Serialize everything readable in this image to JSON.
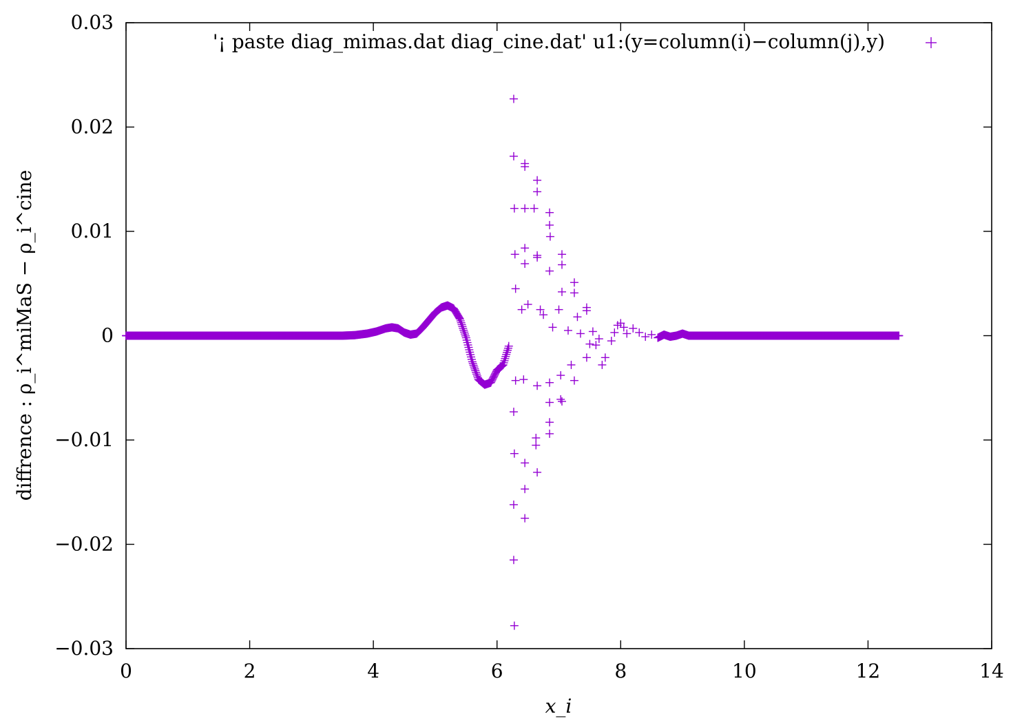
{
  "chart_data": {
    "type": "scatter",
    "xlabel": "x_i",
    "ylabel": "diffrence : ρ_i^miMaS − ρ_i^cine",
    "xlim": [
      0,
      14
    ],
    "ylim": [
      -0.03,
      0.03
    ],
    "x_ticks": [
      "0",
      "2",
      "4",
      "6",
      "8",
      "10",
      "12",
      "14"
    ],
    "y_ticks": [
      "−0.03",
      "−0.02",
      "−0.01",
      "0",
      "0.01",
      "0.02",
      "0.03"
    ],
    "grid": false,
    "legend_position": "top-right",
    "marker": "plus",
    "color": "#9400d3",
    "series": [
      {
        "name": "'¡ paste diag_mimas.dat diag_cine.dat' u1:(y=column(i)−column(j),y)",
        "points": [
          [
            0.0,
            0.0
          ],
          [
            0.5,
            0.0
          ],
          [
            1.0,
            0.0
          ],
          [
            1.5,
            0.0
          ],
          [
            2.0,
            0.0
          ],
          [
            2.5,
            0.0
          ],
          [
            3.0,
            0.0
          ],
          [
            3.5,
            0.0
          ],
          [
            3.7,
            5e-05
          ],
          [
            3.9,
            0.0002
          ],
          [
            4.05,
            0.0004
          ],
          [
            4.2,
            0.0007
          ],
          [
            4.3,
            0.0008
          ],
          [
            4.4,
            0.0007
          ],
          [
            4.5,
            0.0003
          ],
          [
            4.6,
            0.0001
          ],
          [
            4.7,
            0.0002
          ],
          [
            4.8,
            0.0008
          ],
          [
            4.9,
            0.0015
          ],
          [
            5.0,
            0.0022
          ],
          [
            5.1,
            0.0027
          ],
          [
            5.2,
            0.0029
          ],
          [
            5.3,
            0.0026
          ],
          [
            5.4,
            0.0016
          ],
          [
            5.5,
            -0.0002
          ],
          [
            5.6,
            -0.0025
          ],
          [
            5.7,
            -0.0042
          ],
          [
            5.8,
            -0.0047
          ],
          [
            5.9,
            -0.0045
          ],
          [
            6.0,
            -0.0033
          ],
          [
            6.1,
            -0.0028
          ],
          [
            6.2,
            -0.0008
          ],
          [
            6.27,
            0.0227
          ],
          [
            6.27,
            0.0172
          ],
          [
            6.28,
            0.0122
          ],
          [
            6.29,
            0.0078
          ],
          [
            6.3,
            0.0045
          ],
          [
            6.3,
            -0.0043
          ],
          [
            6.27,
            -0.0073
          ],
          [
            6.28,
            -0.0113
          ],
          [
            6.27,
            -0.0162
          ],
          [
            6.27,
            -0.0215
          ],
          [
            6.28,
            -0.0278
          ],
          [
            6.45,
            0.0165
          ],
          [
            6.45,
            0.0162
          ],
          [
            6.45,
            0.0122
          ],
          [
            6.45,
            0.0084
          ],
          [
            6.45,
            0.0069
          ],
          [
            6.43,
            -0.0042
          ],
          [
            6.45,
            -0.0122
          ],
          [
            6.45,
            -0.0147
          ],
          [
            6.45,
            -0.0175
          ],
          [
            6.4,
            0.0025
          ],
          [
            6.5,
            0.003
          ],
          [
            6.6,
            0.0122
          ],
          [
            6.65,
            0.0149
          ],
          [
            6.65,
            0.0138
          ],
          [
            6.65,
            0.0077
          ],
          [
            6.65,
            0.0075
          ],
          [
            6.65,
            -0.0048
          ],
          [
            6.63,
            -0.0105
          ],
          [
            6.63,
            -0.0098
          ],
          [
            6.65,
            -0.0131
          ],
          [
            6.7,
            0.0025
          ],
          [
            6.75,
            0.002
          ],
          [
            6.85,
            0.0118
          ],
          [
            6.85,
            0.0106
          ],
          [
            6.86,
            0.0095
          ],
          [
            6.85,
            0.0062
          ],
          [
            6.85,
            -0.0045
          ],
          [
            6.85,
            -0.0064
          ],
          [
            6.85,
            -0.0083
          ],
          [
            6.85,
            -0.0094
          ],
          [
            6.9,
            0.0008
          ],
          [
            7.0,
            0.0025
          ],
          [
            7.05,
            0.0078
          ],
          [
            7.05,
            0.0068
          ],
          [
            7.05,
            0.0042
          ],
          [
            7.03,
            -0.0038
          ],
          [
            7.03,
            -0.0061
          ],
          [
            7.05,
            -0.0063
          ],
          [
            7.15,
            0.0005
          ],
          [
            7.25,
            0.0041
          ],
          [
            7.25,
            0.0051
          ],
          [
            7.25,
            -0.0043
          ],
          [
            7.2,
            -0.0028
          ],
          [
            7.3,
            0.0018
          ],
          [
            7.35,
            0.0002
          ],
          [
            7.45,
            0.0027
          ],
          [
            7.45,
            0.0024
          ],
          [
            7.45,
            -0.0021
          ],
          [
            7.5,
            -0.0008
          ],
          [
            7.55,
            0.0004
          ],
          [
            7.6,
            -0.0009
          ],
          [
            7.65,
            -0.0003
          ],
          [
            7.7,
            -0.0028
          ],
          [
            7.75,
            -0.0021
          ],
          [
            7.85,
            -0.0005
          ],
          [
            7.9,
            0.0003
          ],
          [
            7.95,
            0.001
          ],
          [
            8.0,
            0.0012
          ],
          [
            8.05,
            0.0008
          ],
          [
            8.1,
            0.0002
          ],
          [
            8.2,
            0.0007
          ],
          [
            8.3,
            0.0003
          ],
          [
            8.4,
            -0.0001
          ],
          [
            8.5,
            0.0001
          ],
          [
            8.6,
            -0.0002
          ],
          [
            8.7,
            0.0001
          ],
          [
            8.8,
            -0.0001
          ],
          [
            8.9,
            0.0
          ],
          [
            9.0,
            0.0002
          ],
          [
            9.1,
            0.0
          ],
          [
            9.5,
            0.0
          ],
          [
            10.0,
            0.0
          ],
          [
            10.5,
            0.0
          ],
          [
            11.0,
            0.0
          ],
          [
            11.5,
            0.0
          ],
          [
            12.0,
            0.0
          ],
          [
            12.5,
            0.0
          ]
        ]
      }
    ]
  }
}
